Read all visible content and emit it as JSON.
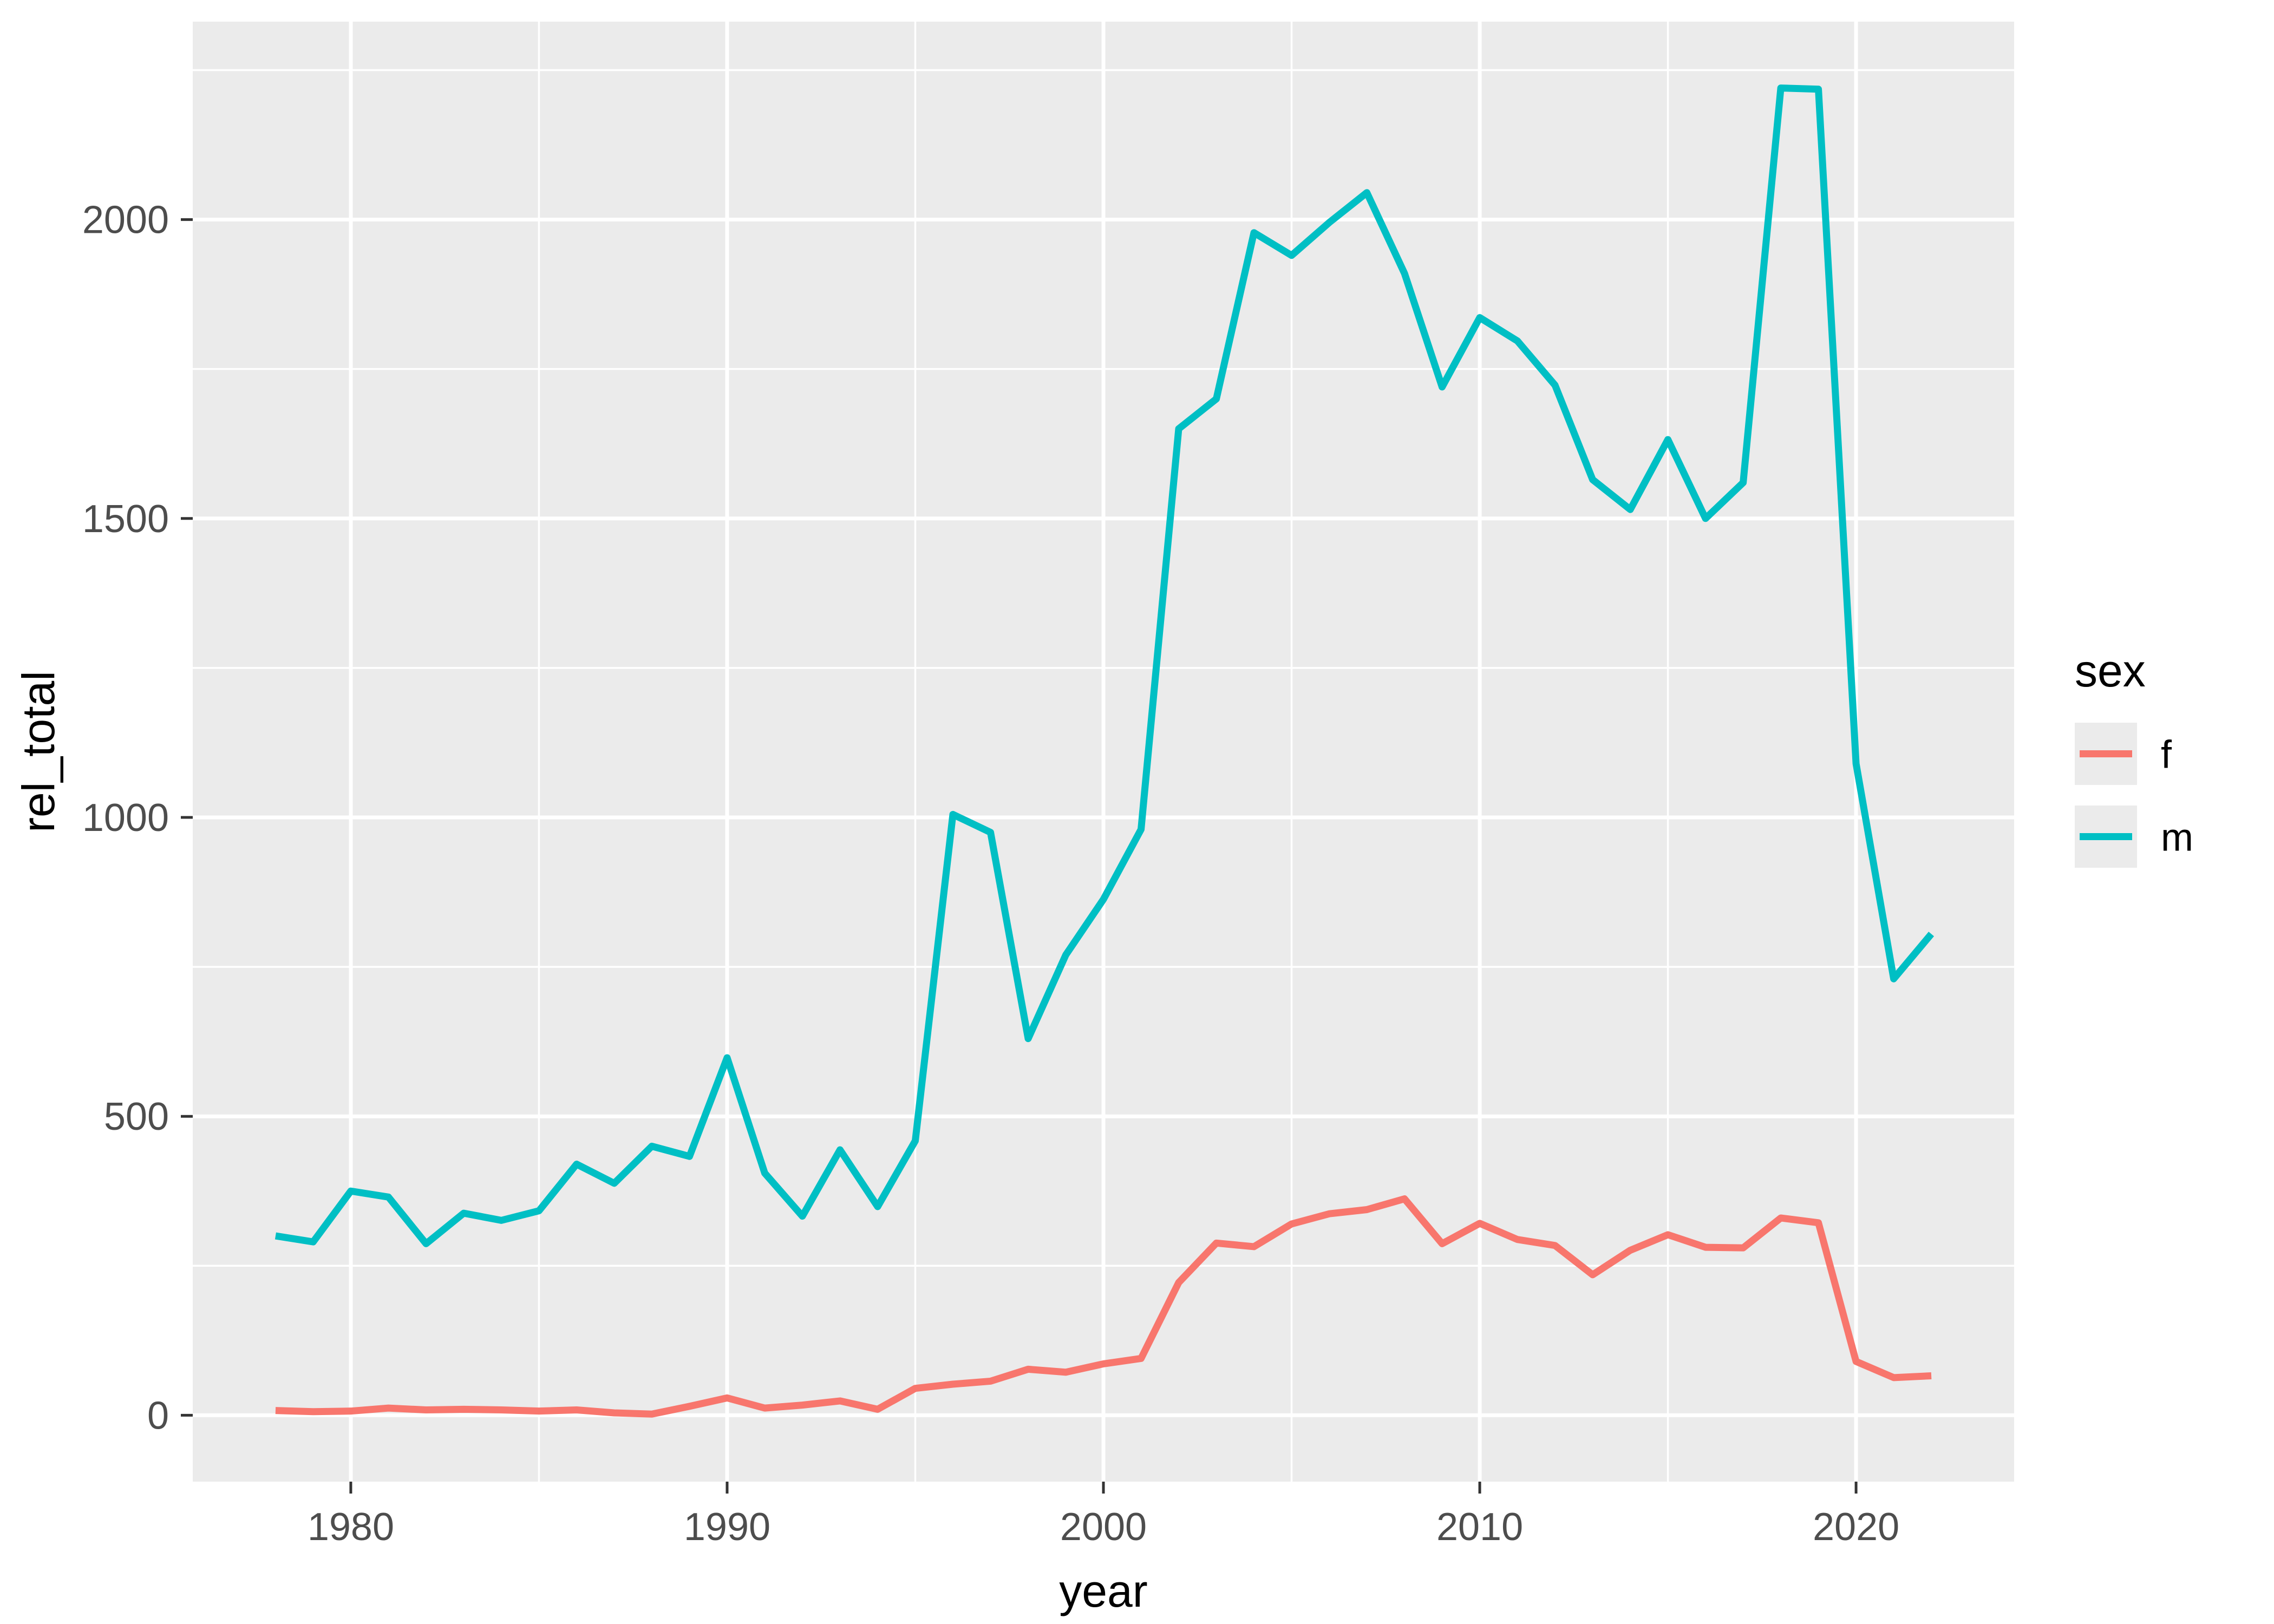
{
  "chart_data": {
    "type": "line",
    "title": "",
    "xlabel": "year",
    "ylabel": "rel_total",
    "x": [
      1978,
      1979,
      1980,
      1981,
      1982,
      1983,
      1984,
      1985,
      1986,
      1987,
      1988,
      1989,
      1990,
      1991,
      1992,
      1993,
      1994,
      1995,
      1996,
      1997,
      1998,
      1999,
      2000,
      2001,
      2002,
      2003,
      2004,
      2005,
      2006,
      2007,
      2008,
      2009,
      2010,
      2011,
      2012,
      2013,
      2014,
      2015,
      2016,
      2017,
      2018,
      2019,
      2020,
      2021,
      2022
    ],
    "series": [
      {
        "name": "f",
        "color": "#F8766D",
        "values": [
          8,
          6,
          7,
          12,
          9,
          10,
          9,
          7,
          9,
          4,
          2,
          15,
          29,
          12,
          17,
          24,
          10,
          45,
          52,
          57,
          77,
          72,
          86,
          95,
          222,
          288,
          282,
          320,
          337,
          344,
          362,
          287,
          321,
          294,
          284,
          235,
          276,
          302,
          281,
          280,
          330,
          322,
          90,
          63,
          66
        ]
      },
      {
        "name": "m",
        "color": "#00BFC4",
        "values": [
          300,
          290,
          375,
          365,
          287,
          338,
          326,
          342,
          420,
          388,
          450,
          433,
          598,
          405,
          333,
          444,
          349,
          459,
          1005,
          975,
          630,
          770,
          863,
          980,
          1650,
          1700,
          1978,
          1940,
          1995,
          2045,
          1910,
          1720,
          1836,
          1797,
          1723,
          1565,
          1515,
          1632,
          1500,
          1560,
          2220,
          2218,
          1090,
          730,
          805
        ]
      }
    ],
    "x_ticks": [
      1980,
      1990,
      2000,
      2010,
      2020
    ],
    "y_ticks": [
      0,
      500,
      1000,
      1500,
      2000
    ],
    "x_minor_ticks": [
      1985,
      1995,
      2005,
      2015
    ],
    "y_minor_ticks": [
      250,
      750,
      1250,
      1750,
      2250
    ],
    "xlim": [
      1975.8,
      2024.2
    ],
    "ylim": [
      -111,
      2331
    ],
    "grid": true,
    "legend": {
      "title": "sex",
      "position": "right",
      "entries": [
        {
          "label": "f",
          "color": "#F8766D"
        },
        {
          "label": "m",
          "color": "#00BFC4"
        }
      ]
    },
    "colors": {
      "panel_bg": "#EBEBEB",
      "grid": "#FFFFFF",
      "tick_mark": "#333333",
      "tick_label": "#4D4D4D",
      "axis_title": "#000000",
      "legend_key_bg": "#EBEBEB"
    }
  }
}
